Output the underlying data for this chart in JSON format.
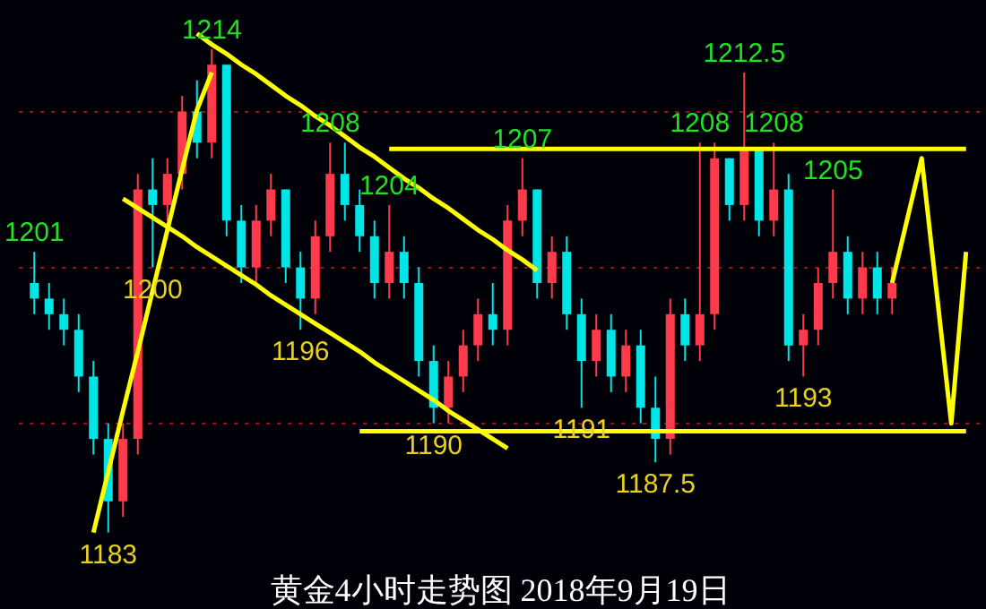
{
  "chart_data": {
    "type": "candlestick",
    "title": "黄金4小时走势图 2018年9月19日",
    "categories": [
      null,
      null,
      null,
      null,
      null,
      null,
      null,
      null,
      null,
      null,
      null,
      null,
      null,
      null,
      null,
      null,
      null,
      null,
      null,
      null,
      null,
      null,
      null,
      null,
      null,
      null,
      null,
      null,
      null,
      null,
      null,
      null,
      null,
      null,
      null,
      null,
      null,
      null,
      null,
      null,
      null,
      null,
      null,
      null,
      null,
      null,
      null,
      null,
      null,
      null,
      null,
      null,
      null,
      null,
      null,
      null,
      null,
      null,
      null,
      null,
      null,
      null,
      null,
      null
    ],
    "yticks": [
      {
        "value": 1190,
        "label": null
      },
      {
        "value": 1200,
        "label": null
      },
      {
        "value": 1210,
        "label": null
      }
    ],
    "grid": "y",
    "tick_labels": false,
    "marker": "none",
    "line_style": "solid",
    "series": [
      {
        "ohlc": [
          [
            1199,
            1201,
            1197,
            1198
          ],
          [
            1198,
            1199,
            1196,
            1197
          ],
          [
            1197,
            1198,
            1195,
            1196
          ],
          [
            1196,
            1197,
            1192,
            1193
          ],
          [
            1193,
            1194,
            1188,
            1189
          ],
          [
            1189,
            1190,
            1183,
            1185
          ],
          [
            1185,
            1190,
            1184,
            1189
          ],
          [
            1189,
            1206,
            1188,
            1205
          ],
          [
            1205,
            1207,
            1200,
            1204
          ],
          [
            1204,
            1207,
            1203,
            1206
          ],
          [
            1206,
            1211,
            1205,
            1210
          ],
          [
            1210,
            1212,
            1207,
            1208
          ],
          [
            1208,
            1214,
            1207,
            1213
          ],
          [
            1213,
            1213,
            1202,
            1203
          ],
          [
            1203,
            1204,
            1199,
            1200
          ],
          [
            1200,
            1204,
            1199,
            1203
          ],
          [
            1203,
            1206,
            1202,
            1205
          ],
          [
            1205,
            1205,
            1199,
            1200
          ],
          [
            1200,
            1201,
            1196,
            1198
          ],
          [
            1198,
            1203,
            1197,
            1202
          ],
          [
            1202,
            1208,
            1201,
            1206
          ],
          [
            1206,
            1208,
            1203,
            1204
          ],
          [
            1204,
            1205,
            1201,
            1202
          ],
          [
            1202,
            1203,
            1198,
            1199
          ],
          [
            1199,
            1204,
            1198,
            1201
          ],
          [
            1201,
            1202,
            1198,
            1199
          ],
          [
            1199,
            1200,
            1193,
            1194
          ],
          [
            1194,
            1195,
            1190,
            1191
          ],
          [
            1191,
            1194,
            1190,
            1193
          ],
          [
            1193,
            1196,
            1192,
            1195
          ],
          [
            1195,
            1198,
            1194,
            1197
          ],
          [
            1197,
            1199,
            1195,
            1196
          ],
          [
            1196,
            1204,
            1195,
            1203
          ],
          [
            1203,
            1207,
            1202,
            1205
          ],
          [
            1205,
            1205,
            1198,
            1199
          ],
          [
            1199,
            1202,
            1198,
            1201
          ],
          [
            1201,
            1202,
            1196,
            1197
          ],
          [
            1197,
            1198,
            1191,
            1194
          ],
          [
            1194,
            1197,
            1193,
            1196
          ],
          [
            1196,
            1197,
            1192,
            1193
          ],
          [
            1193,
            1196,
            1192,
            1195
          ],
          [
            1195,
            1196,
            1190,
            1191
          ],
          [
            1191,
            1193,
            1187.5,
            1189
          ],
          [
            1189,
            1198,
            1188,
            1197
          ],
          [
            1197,
            1198,
            1194,
            1195
          ],
          [
            1195,
            1208,
            1194,
            1197
          ],
          [
            1197,
            1208,
            1196,
            1207
          ],
          [
            1207,
            1207,
            1203,
            1204
          ],
          [
            1204,
            1212.5,
            1203,
            1207.5
          ],
          [
            1207.5,
            1207.5,
            1202,
            1203
          ],
          [
            1203,
            1208,
            1202,
            1205
          ],
          [
            1205,
            1206,
            1194,
            1195
          ],
          [
            1195,
            1197,
            1193,
            1196
          ],
          [
            1196,
            1200,
            1195,
            1199
          ],
          [
            1199,
            1205,
            1198,
            1201
          ],
          [
            1201,
            1202,
            1197,
            1198
          ],
          [
            1198,
            1201,
            1197,
            1200
          ],
          [
            1200,
            1201,
            1197,
            1198
          ],
          [
            1198,
            1200,
            1197,
            1199
          ],
          null,
          null,
          null,
          null,
          null
        ],
        "colors": [
          "#00e5e5",
          "#00e5e5",
          "#00e5e5",
          "#00e5e5",
          "#00e5e5",
          "#00e5e5",
          "#ff3b4b",
          "#ff3b4b",
          "#00e5e5",
          "#ff3b4b",
          "#ff3b4b",
          "#00e5e5",
          "#ff3b4b",
          "#00e5e5",
          "#00e5e5",
          "#ff3b4b",
          "#ff3b4b",
          "#00e5e5",
          "#00e5e5",
          "#ff3b4b",
          "#ff3b4b",
          "#00e5e5",
          "#00e5e5",
          "#00e5e5",
          "#ff3b4b",
          "#00e5e5",
          "#00e5e5",
          "#00e5e5",
          "#ff3b4b",
          "#ff3b4b",
          "#ff3b4b",
          "#00e5e5",
          "#ff3b4b",
          "#ff3b4b",
          "#00e5e5",
          "#ff3b4b",
          "#00e5e5",
          "#00e5e5",
          "#ff3b4b",
          "#00e5e5",
          "#ff3b4b",
          "#00e5e5",
          "#00e5e5",
          "#ff3b4b",
          "#00e5e5",
          "#ff3b4b",
          "#ff3b4b",
          "#00e5e5",
          "#ff3b4b",
          "#00e5e5",
          "#ff3b4b",
          "#00e5e5",
          "#ff3b4b",
          "#ff3b4b",
          "#ff3b4b",
          "#00e5e5",
          "#ff3b4b",
          "#00e5e5",
          "#ff3b4b",
          null,
          null,
          null,
          null,
          null
        ]
      },
      {
        "type": "line",
        "color": "#ffff00",
        "values": [
          null,
          null,
          null,
          null,
          1183,
          1186.9,
          1190.8,
          1194.6,
          1198.5,
          1202.4,
          1206.3,
          1210.1,
          1212.5,
          null,
          null,
          null,
          null,
          null,
          null,
          null,
          null,
          null,
          null,
          null,
          null,
          null,
          null,
          null,
          null,
          null,
          null,
          null,
          null,
          null,
          null,
          null,
          null,
          null,
          null,
          null,
          null,
          null,
          null,
          null,
          null,
          null,
          null,
          null,
          null,
          null,
          null,
          null,
          null,
          null,
          null,
          null,
          null,
          null,
          null,
          null,
          null,
          null,
          null,
          null
        ]
      },
      {
        "type": "line",
        "color": "#ffff00",
        "values": [
          null,
          null,
          null,
          null,
          null,
          null,
          null,
          null,
          null,
          null,
          null,
          1215,
          1214.3,
          1213.7,
          1213.0,
          1212.4,
          1211.7,
          1211.0,
          1210.4,
          1209.7,
          1209.1,
          1208.4,
          1207.7,
          1207.1,
          1206.4,
          1205.7,
          1205.1,
          1204.4,
          1203.8,
          1203.1,
          1202.4,
          1201.8,
          1201.1,
          1200.5,
          1199.8,
          null,
          null,
          null,
          null,
          null,
          null,
          null,
          null,
          null,
          null,
          null,
          null,
          null,
          null,
          null,
          null,
          null,
          null,
          null,
          null,
          null,
          null,
          null,
          null,
          null,
          null,
          null,
          null,
          null
        ]
      },
      {
        "type": "line",
        "color": "#ffff00",
        "values": [
          null,
          null,
          null,
          null,
          null,
          null,
          1204.4,
          1203.8,
          1203.2,
          1202.6,
          1202.0,
          1201.3,
          1200.7,
          1200.1,
          1199.5,
          1198.9,
          1198.2,
          1197.6,
          1197.0,
          1196.4,
          1195.8,
          1195.2,
          1194.6,
          1193.9,
          1193.3,
          1192.7,
          1192.1,
          1191.5,
          1190.8,
          1190.2,
          1189.6,
          1189.0,
          1188.4,
          null,
          null,
          null,
          null,
          null,
          null,
          null,
          null,
          null,
          null,
          null,
          null,
          null,
          null,
          null,
          null,
          null,
          null,
          null,
          null,
          null,
          null,
          null,
          null,
          null,
          null,
          null,
          null,
          null,
          null,
          null
        ]
      },
      {
        "type": "line",
        "color": "#ffff00",
        "values": [
          null,
          null,
          null,
          null,
          null,
          null,
          null,
          null,
          null,
          null,
          null,
          null,
          null,
          null,
          null,
          null,
          null,
          null,
          null,
          null,
          null,
          null,
          null,
          null,
          1207.6,
          1207.6,
          1207.6,
          1207.6,
          1207.6,
          1207.6,
          1207.6,
          1207.6,
          1207.6,
          1207.6,
          1207.6,
          1207.6,
          1207.6,
          1207.6,
          1207.6,
          1207.6,
          1207.6,
          1207.6,
          1207.6,
          1207.6,
          1207.6,
          1207.6,
          1207.6,
          1207.6,
          1207.6,
          1207.6,
          1207.6,
          1207.6,
          1207.6,
          1207.6,
          1207.6,
          1207.6,
          1207.6,
          1207.6,
          1207.6,
          1207.6,
          1207.6,
          1207.6,
          1207.6,
          1207.6
        ]
      },
      {
        "type": "line",
        "color": "#ffff00",
        "values": [
          null,
          null,
          null,
          null,
          null,
          null,
          null,
          null,
          null,
          null,
          null,
          null,
          null,
          null,
          null,
          null,
          null,
          null,
          null,
          null,
          null,
          null,
          1189.5,
          1189.5,
          1189.5,
          1189.5,
          1189.5,
          1189.5,
          1189.5,
          1189.5,
          1189.5,
          1189.5,
          1189.5,
          1189.5,
          1189.5,
          1189.5,
          1189.5,
          1189.5,
          1189.5,
          1189.5,
          1189.5,
          1189.5,
          1189.5,
          1189.5,
          1189.5,
          1189.5,
          1189.5,
          1189.5,
          1189.5,
          1189.5,
          1189.5,
          1189.5,
          1189.5,
          1189.5,
          1189.5,
          1189.5,
          1189.5,
          1189.5,
          1189.5,
          1189.5,
          1189.5,
          1189.5,
          1189.5,
          1189.5
        ]
      },
      {
        "type": "line",
        "color": "#ffff00",
        "values": [
          null,
          null,
          null,
          null,
          null,
          null,
          null,
          null,
          null,
          null,
          null,
          null,
          null,
          null,
          null,
          null,
          null,
          null,
          null,
          null,
          null,
          null,
          null,
          null,
          null,
          null,
          null,
          null,
          null,
          null,
          null,
          null,
          null,
          null,
          null,
          null,
          null,
          null,
          null,
          null,
          null,
          null,
          null,
          null,
          null,
          null,
          null,
          null,
          null,
          null,
          null,
          null,
          null,
          null,
          null,
          null,
          null,
          null,
          1199,
          1203,
          1207,
          1198.5,
          1190,
          1201
        ]
      }
    ],
    "annotations": [
      {
        "text": "1201",
        "y": 1201
      },
      {
        "text": "1183",
        "y": 1183
      },
      {
        "text": "1200",
        "y": 1200
      },
      {
        "text": "1214",
        "y": 1214
      },
      {
        "text": "1196",
        "y": 1196
      },
      {
        "text": "1208",
        "y": 1208
      },
      {
        "text": "1204",
        "y": 1204
      },
      {
        "text": "1190",
        "y": 1190
      },
      {
        "text": "1207",
        "y": 1207
      },
      {
        "text": "1191",
        "y": 1191
      },
      {
        "text": "1187.5",
        "y": 1187.5
      },
      {
        "text": "1208",
        "y": 1208
      },
      {
        "text": "1212.5",
        "y": 1212.5
      },
      {
        "text": "1208",
        "y": 1208
      },
      {
        "text": "1193",
        "y": 1193
      },
      {
        "text": "1205",
        "y": 1205
      }
    ]
  }
}
